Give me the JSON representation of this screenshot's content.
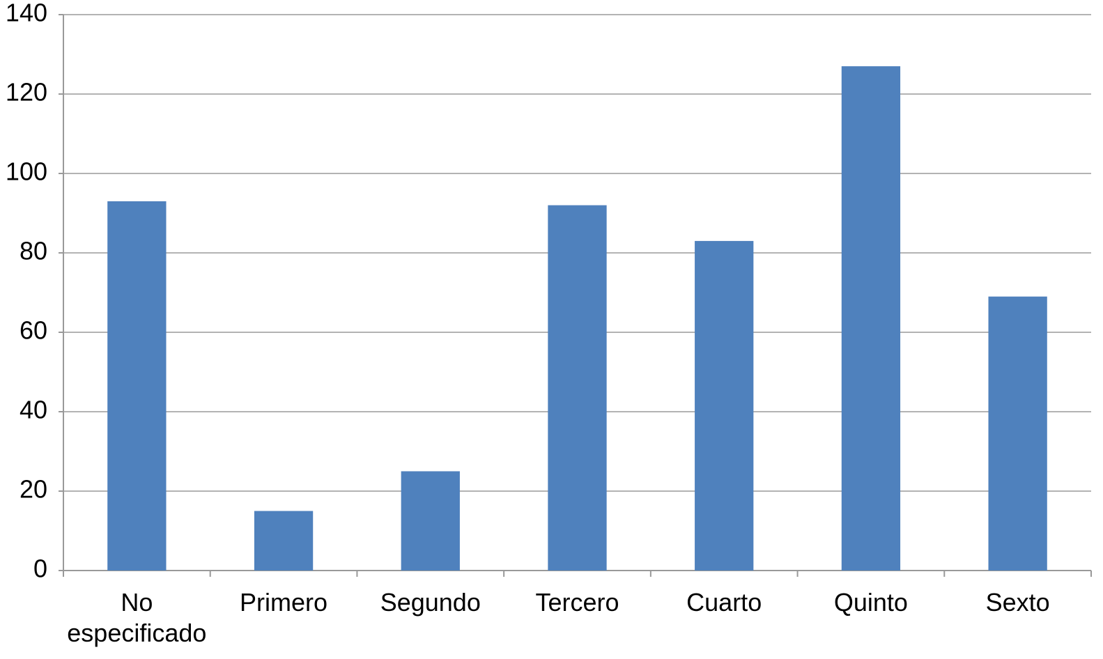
{
  "chart_data": {
    "type": "bar",
    "categories": [
      "No especificado",
      "Primero",
      "Segundo",
      "Tercero",
      "Cuarto",
      "Quinto",
      "Sexto"
    ],
    "values": [
      93,
      15,
      25,
      92,
      83,
      127,
      69
    ],
    "color": "#4f81bd",
    "ylim": [
      0,
      140
    ],
    "yticks": [
      0,
      20,
      40,
      60,
      80,
      100,
      120,
      140
    ],
    "grid": true
  }
}
